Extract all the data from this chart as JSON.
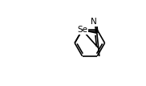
{
  "background_color": "#ffffff",
  "bond_color": "#000000",
  "text_color": "#000000",
  "line_width": 1.2,
  "figsize": [
    1.82,
    1.07
  ],
  "dpi": 100,
  "Se_label": "Se",
  "N_label": "N",
  "label_fontsize": 7.5
}
